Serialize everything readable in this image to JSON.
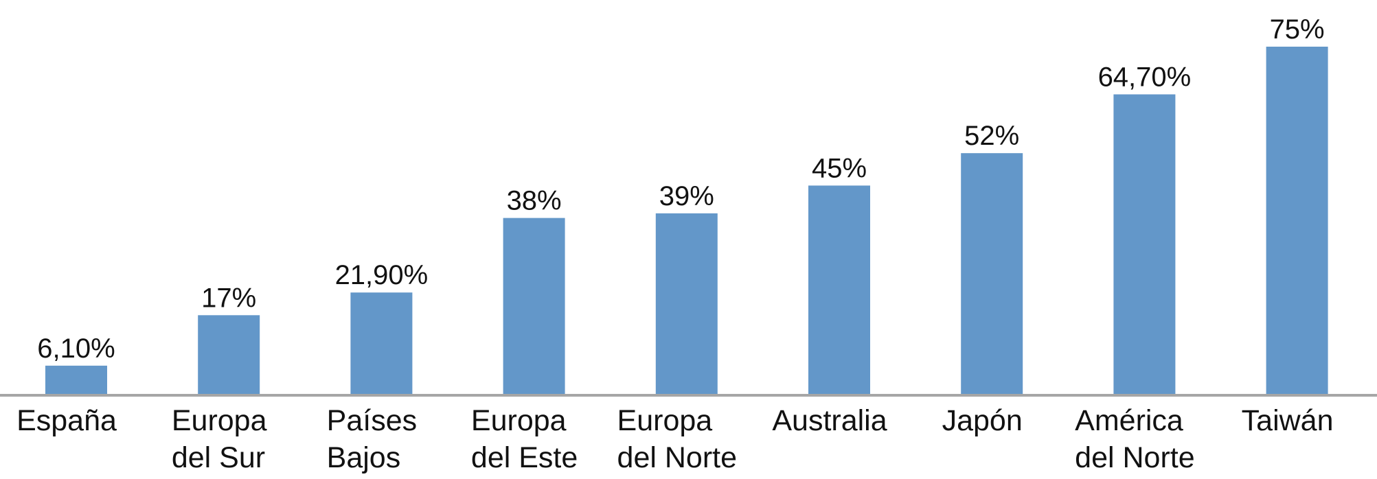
{
  "chart_data": {
    "type": "bar",
    "categories": [
      "España",
      "Europa\ndel Sur",
      "Países\nBajos",
      "Europa\ndel Este",
      "Europa\ndel Norte",
      "Australia",
      "Japón",
      "América\ndel Norte",
      "Taiwán"
    ],
    "values": [
      6.1,
      17,
      21.9,
      38,
      39,
      45,
      52,
      64.7,
      75
    ],
    "value_labels": [
      "6,10%",
      "17%",
      "21,90%",
      "38%",
      "39%",
      "45%",
      "52%",
      "64,70%",
      "75%"
    ],
    "color": "#6397c9"
  }
}
